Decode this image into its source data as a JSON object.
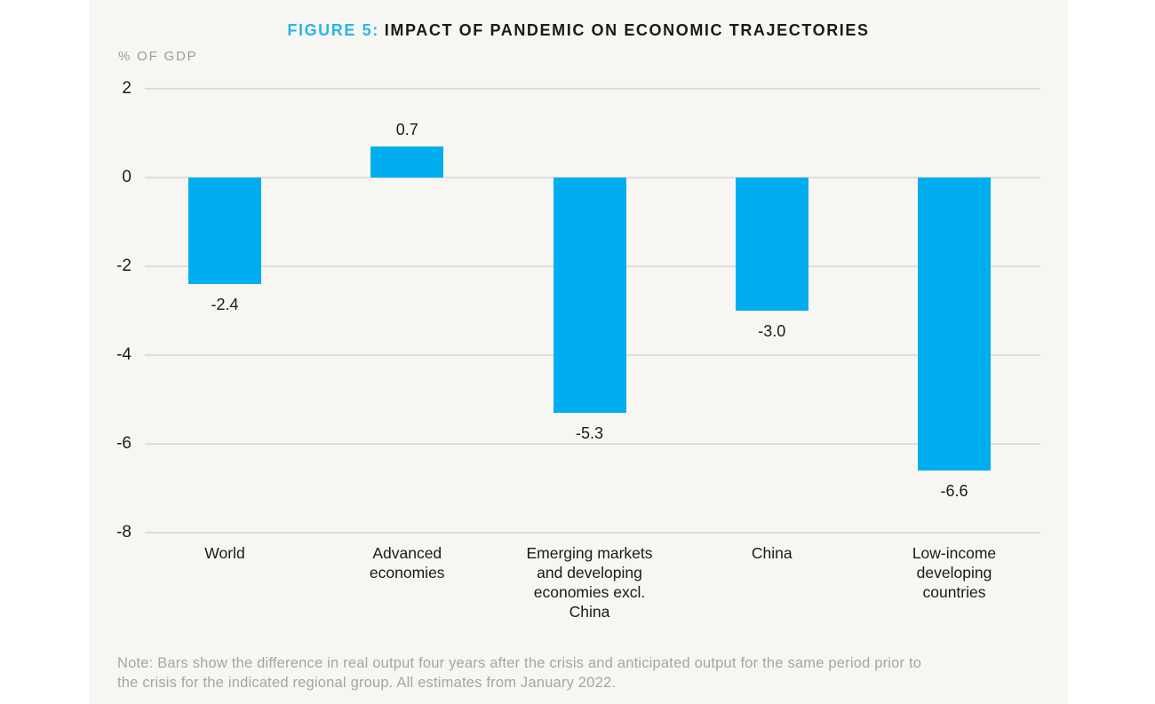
{
  "header": {
    "figure_label": "FIGURE 5:",
    "title": "IMPACT OF PANDEMIC ON ECONOMIC TRAJECTORIES",
    "unit_label": "% OF GDP"
  },
  "colors": {
    "bar": "#00AEEF",
    "figure_accent": "#29B6EA",
    "panel_background": "#F7F6F3",
    "text": "#1A1A1A",
    "muted_text": "#9B9B9B",
    "note_text": "#A5A5A5",
    "gridline": "#DEDEDE"
  },
  "chart_data": {
    "type": "bar",
    "title": "FIGURE 5: IMPACT OF PANDEMIC ON ECONOMIC TRAJECTORIES",
    "xlabel": "",
    "ylabel": "% OF GDP",
    "categories": [
      "World",
      "Advanced\neconomies",
      "Emerging markets\nand developing\neconomies excl.\nChina",
      "China",
      "Low-income\ndeveloping\ncountries"
    ],
    "values": [
      -2.4,
      0.7,
      -5.3,
      -3.0,
      -6.6
    ],
    "value_labels": [
      "-2.4",
      "0.7",
      "-5.3",
      "-3.0",
      "-6.6"
    ],
    "yticks": [
      2,
      0,
      -2,
      -4,
      -6,
      -8
    ],
    "ylim": [
      -8,
      2
    ],
    "grid": true,
    "legend": false,
    "bar_color": "#00AEEF"
  },
  "footnote": {
    "text": "Note: Bars show the difference in real output four years after the crisis and anticipated output for the same period prior to\nthe crisis for the indicated regional group. All estimates from January 2022."
  }
}
